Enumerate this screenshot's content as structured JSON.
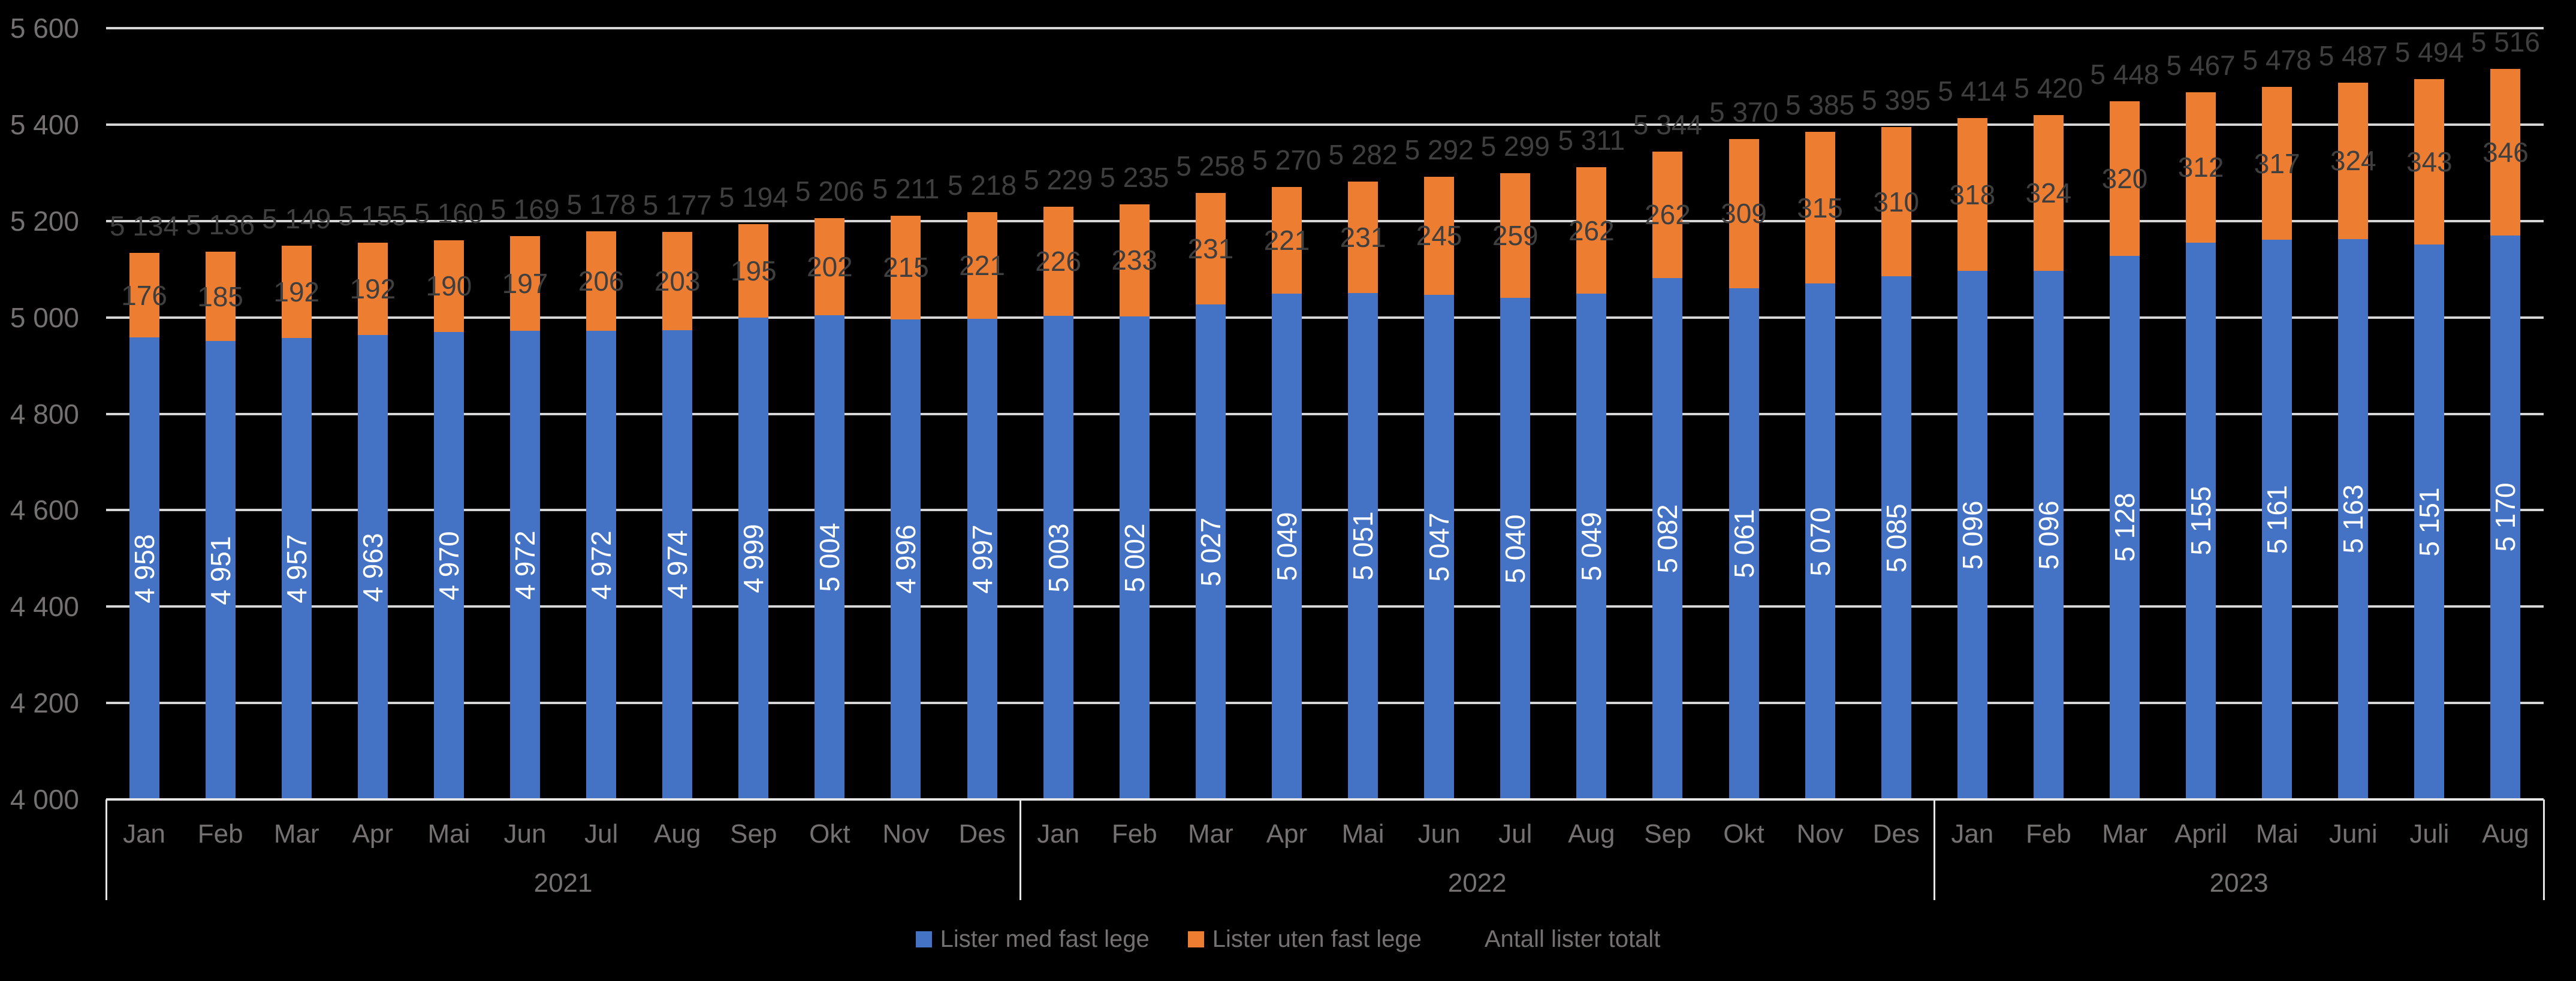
{
  "background_color": "#000000",
  "chart_data": {
    "type": "bar",
    "stacked": true,
    "title": "",
    "xlabel": "",
    "ylabel": "",
    "legend_position": "bottom",
    "grid": true,
    "y_axis": {
      "min": 4000,
      "max": 5600,
      "step": 200,
      "tick_labels": [
        "4 000",
        "4 200",
        "4 400",
        "4 600",
        "4 800",
        "5 000",
        "5 200",
        "5 400",
        "5 600"
      ]
    },
    "categories": [
      "Jan",
      "Feb",
      "Mar",
      "Apr",
      "Mai",
      "Jun",
      "Jul",
      "Aug",
      "Sep",
      "Okt",
      "Nov",
      "Des",
      "Jan",
      "Feb",
      "Mar",
      "Apr",
      "Mai",
      "Jun",
      "Jul",
      "Aug",
      "Sep",
      "Okt",
      "Nov",
      "Des",
      "Jan",
      "Feb",
      "Mar",
      "April",
      "Mai",
      "Juni",
      "Juli",
      "Aug"
    ],
    "groups": [
      {
        "label": "2021",
        "count": 12
      },
      {
        "label": "2022",
        "count": 12
      },
      {
        "label": "2023",
        "count": 8
      }
    ],
    "series": [
      {
        "name": "Lister med fast lege",
        "color": "#4472C4",
        "label_color": "#FFFFFF",
        "values": [
          4958,
          4951,
          4957,
          4963,
          4970,
          4972,
          4972,
          4974,
          4999,
          5004,
          4996,
          4997,
          5003,
          5002,
          5027,
          5049,
          5051,
          5047,
          5040,
          5049,
          5082,
          5061,
          5070,
          5085,
          5096,
          5096,
          5128,
          5155,
          5161,
          5163,
          5151,
          5170
        ]
      },
      {
        "name": "Lister uten fast lege",
        "color": "#ED7D31",
        "label_color": "#3F3F3F",
        "values": [
          176,
          185,
          192,
          192,
          190,
          197,
          206,
          203,
          195,
          202,
          215,
          221,
          226,
          233,
          231,
          221,
          231,
          245,
          259,
          262,
          262,
          309,
          315,
          310,
          318,
          324,
          320,
          312,
          317,
          324,
          343,
          346
        ]
      },
      {
        "name": "Antall lister totalt",
        "color": null,
        "label_color": "#3F3F3F",
        "values": [
          5134,
          5136,
          5149,
          5155,
          5160,
          5169,
          5178,
          5177,
          5194,
          5206,
          5211,
          5218,
          5229,
          5235,
          5258,
          5270,
          5282,
          5292,
          5299,
          5311,
          5344,
          5370,
          5385,
          5395,
          5414,
          5420,
          5448,
          5467,
          5478,
          5487,
          5494,
          5516
        ]
      }
    ],
    "colors": {
      "gridline": "#D6D6D6",
      "axis_line": "#E5E5E5",
      "axis_text": "#767171",
      "legend_text": "#767171"
    }
  }
}
